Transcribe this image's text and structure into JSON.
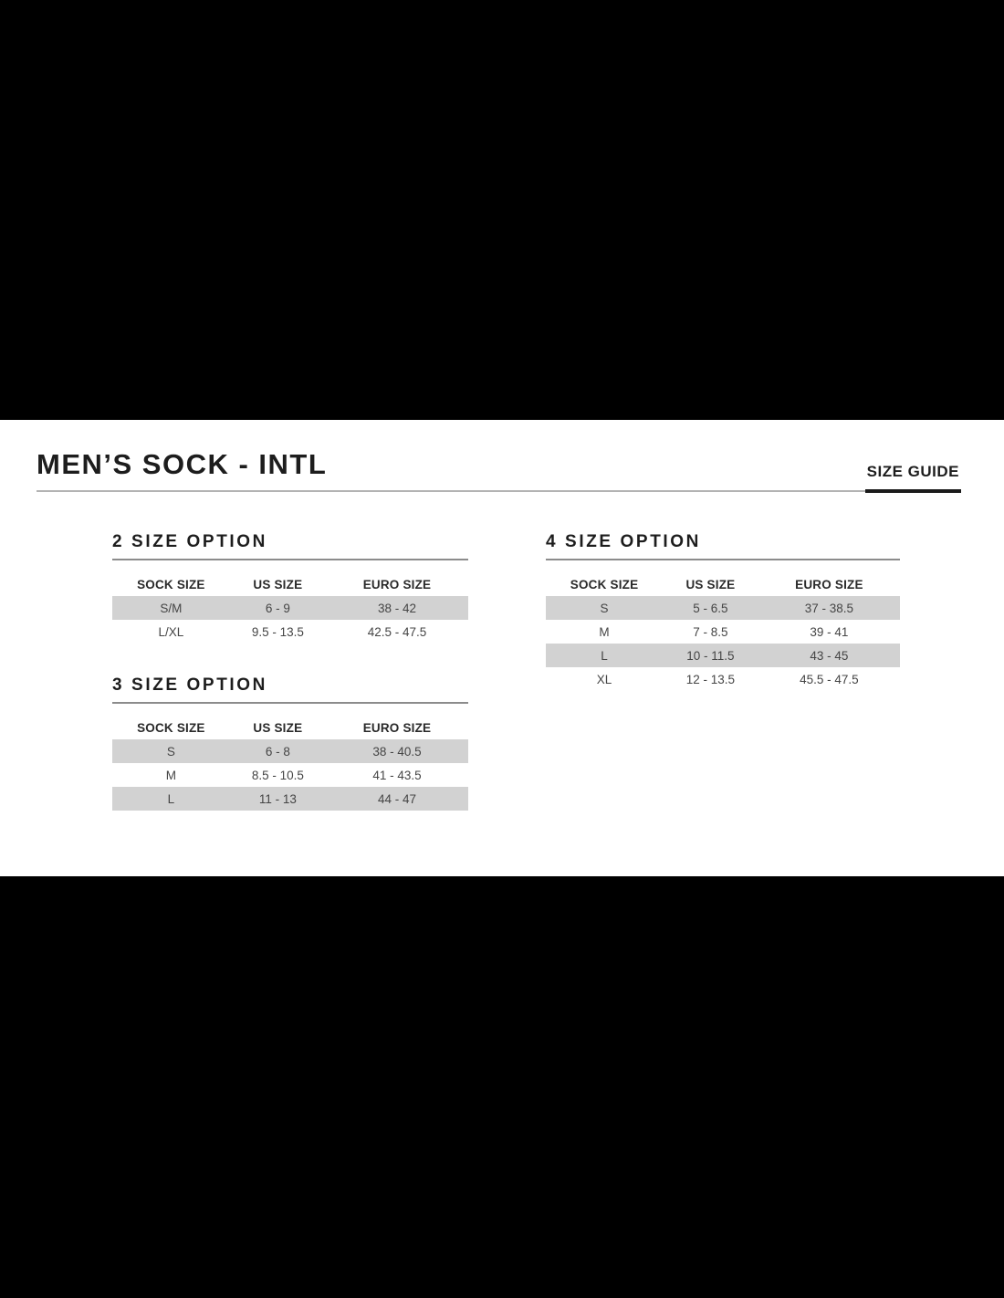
{
  "header": {
    "title": "MEN’S SOCK - INTL",
    "tab_label": "SIZE GUIDE"
  },
  "columns": [
    "SOCK SIZE",
    "US SIZE",
    "EURO SIZE"
  ],
  "tables": [
    {
      "heading": "2 SIZE OPTION",
      "rows": [
        [
          "S/M",
          "6 - 9",
          "38 - 42"
        ],
        [
          "L/XL",
          "9.5 - 13.5",
          "42.5 - 47.5"
        ]
      ]
    },
    {
      "heading": "3 SIZE OPTION",
      "rows": [
        [
          "S",
          "6 - 8",
          "38 - 40.5"
        ],
        [
          "M",
          "8.5 - 10.5",
          "41 - 43.5"
        ],
        [
          "L",
          "11 - 13",
          "44 - 47"
        ]
      ]
    },
    {
      "heading": "4 SIZE OPTION",
      "rows": [
        [
          "S",
          "5 - 6.5",
          "37 - 38.5"
        ],
        [
          "M",
          "7 - 8.5",
          "39 - 41"
        ],
        [
          "L",
          "10 - 11.5",
          "43 - 45"
        ],
        [
          "XL",
          "12 - 13.5",
          "45.5 - 47.5"
        ]
      ]
    }
  ],
  "colors": {
    "letterbox": "#000000",
    "panel": "#ffffff",
    "row_stripe": "#d2d2d2",
    "heading_text": "#1d1d1d",
    "cell_text": "#454545",
    "header_rule": "#b3b3b3",
    "section_rule": "#8c8c8c",
    "tab_underline": "#1a1a1a"
  }
}
